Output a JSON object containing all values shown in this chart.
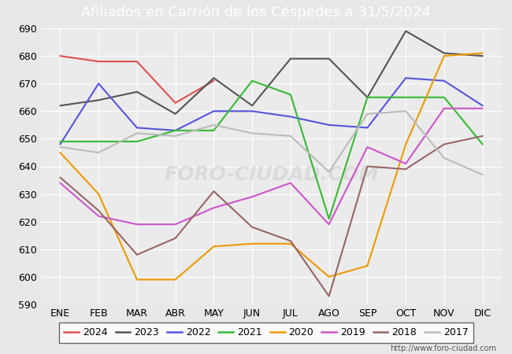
{
  "title": "Afiliados en Carrión de los Céspedes a 31/5/2024",
  "months": [
    "ENE",
    "FEB",
    "MAR",
    "ABR",
    "MAY",
    "JUN",
    "JUL",
    "AGO",
    "SEP",
    "OCT",
    "NOV",
    "DIC"
  ],
  "ylim": [
    590,
    690
  ],
  "yticks": [
    590,
    600,
    610,
    620,
    630,
    640,
    650,
    660,
    670,
    680,
    690
  ],
  "series": {
    "2024": {
      "color": "#e05050",
      "data": [
        680,
        678,
        678,
        663,
        671,
        null,
        null,
        null,
        null,
        null,
        null,
        null
      ]
    },
    "2023": {
      "color": "#555555",
      "data": [
        662,
        664,
        667,
        659,
        672,
        662,
        679,
        679,
        665,
        689,
        681,
        680
      ]
    },
    "2022": {
      "color": "#5555dd",
      "data": [
        648,
        670,
        654,
        653,
        660,
        660,
        658,
        655,
        654,
        672,
        671,
        662
      ]
    },
    "2021": {
      "color": "#33bb33",
      "data": [
        649,
        649,
        649,
        653,
        653,
        671,
        666,
        621,
        665,
        665,
        665,
        648
      ]
    },
    "2020": {
      "color": "#ee9900",
      "data": [
        645,
        630,
        599,
        599,
        611,
        612,
        612,
        600,
        604,
        648,
        680,
        681
      ]
    },
    "2019": {
      "color": "#cc55cc",
      "data": [
        634,
        622,
        619,
        619,
        625,
        629,
        634,
        619,
        647,
        641,
        661,
        661
      ]
    },
    "2018": {
      "color": "#996666",
      "data": [
        636,
        624,
        608,
        614,
        631,
        618,
        613,
        593,
        640,
        639,
        648,
        651
      ]
    },
    "2017": {
      "color": "#bbbbbb",
      "data": [
        647,
        645,
        652,
        651,
        655,
        652,
        651,
        638,
        659,
        660,
        643,
        637
      ]
    }
  },
  "watermark": "FORO-CIUDAD.COM",
  "url": "http://www.foro-ciudad.com",
  "bg_color": "#e8e8e8",
  "plot_bg": "#ebebeb",
  "title_bg": "#4d8fcc",
  "title_color": "white",
  "title_fontsize": 13,
  "tick_fontsize": 9,
  "legend_fontsize": 9
}
